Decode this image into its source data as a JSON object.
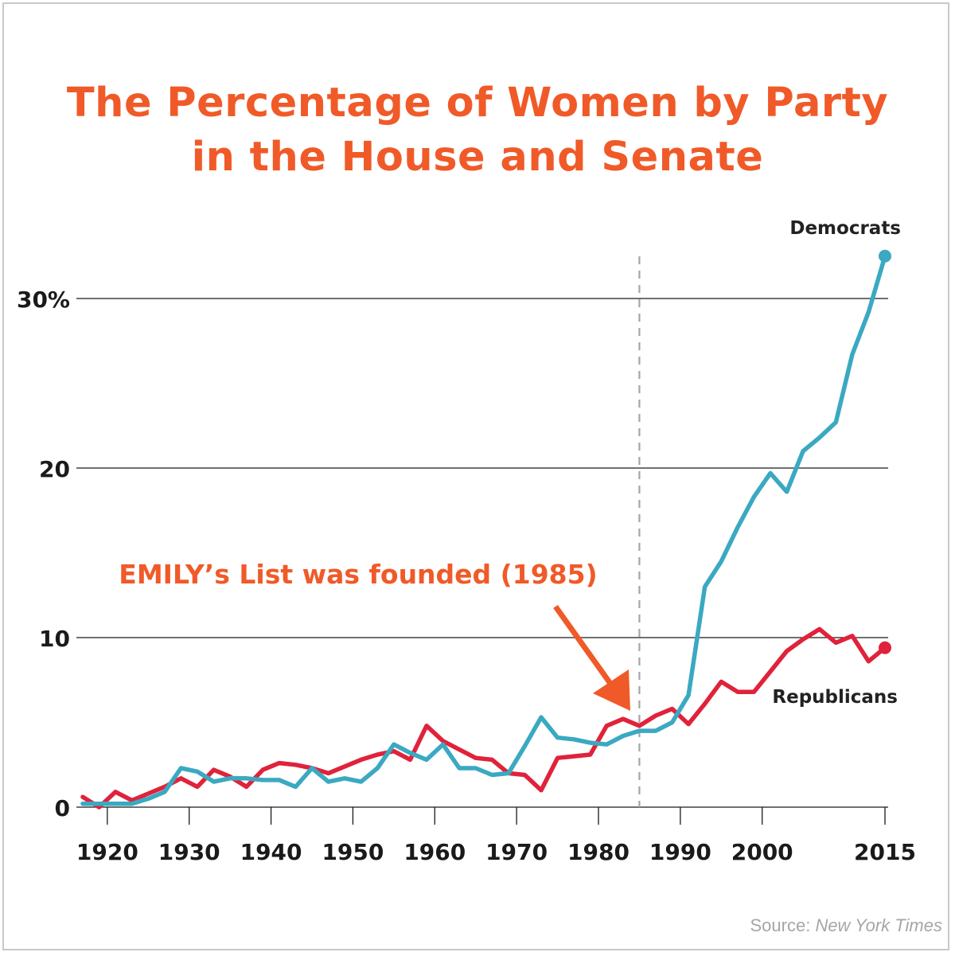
{
  "chart_data": {
    "type": "line",
    "title": [
      "The Percentage of Women by Party",
      "in the House and Senate"
    ],
    "xlim": [
      1917,
      2015
    ],
    "ylim": [
      0,
      32.5
    ],
    "y_ticks": [
      {
        "value": 0,
        "label": "0"
      },
      {
        "value": 10,
        "label": "10"
      },
      {
        "value": 20,
        "label": "20"
      },
      {
        "value": 30,
        "label": "30%"
      }
    ],
    "x_ticks": [
      {
        "value": 1920,
        "label": "1920"
      },
      {
        "value": 1930,
        "label": "1930"
      },
      {
        "value": 1940,
        "label": "1940"
      },
      {
        "value": 1950,
        "label": "1950"
      },
      {
        "value": 1960,
        "label": "1960"
      },
      {
        "value": 1970,
        "label": "1970"
      },
      {
        "value": 1980,
        "label": "1980"
      },
      {
        "value": 1990,
        "label": "1990"
      },
      {
        "value": 2000,
        "label": "2000"
      },
      {
        "value": 2015,
        "label": "2015"
      }
    ],
    "grid": "horizontal",
    "series": [
      {
        "name": "Democrats",
        "color": "#3aa9c1",
        "points": [
          [
            1917,
            0.2
          ],
          [
            1919,
            0.2
          ],
          [
            1921,
            0.2
          ],
          [
            1923,
            0.2
          ],
          [
            1925,
            0.5
          ],
          [
            1927,
            0.9
          ],
          [
            1929,
            2.3
          ],
          [
            1931,
            2.1
          ],
          [
            1933,
            1.5
          ],
          [
            1935,
            1.7
          ],
          [
            1937,
            1.7
          ],
          [
            1939,
            1.6
          ],
          [
            1941,
            1.6
          ],
          [
            1943,
            1.2
          ],
          [
            1945,
            2.3
          ],
          [
            1947,
            1.5
          ],
          [
            1949,
            1.7
          ],
          [
            1951,
            1.5
          ],
          [
            1953,
            2.3
          ],
          [
            1955,
            3.7
          ],
          [
            1957,
            3.2
          ],
          [
            1959,
            2.8
          ],
          [
            1961,
            3.7
          ],
          [
            1963,
            2.3
          ],
          [
            1965,
            2.3
          ],
          [
            1967,
            1.9
          ],
          [
            1969,
            2.0
          ],
          [
            1971,
            3.6
          ],
          [
            1973,
            5.3
          ],
          [
            1975,
            4.1
          ],
          [
            1977,
            4.0
          ],
          [
            1979,
            3.8
          ],
          [
            1981,
            3.7
          ],
          [
            1983,
            4.2
          ],
          [
            1985,
            4.5
          ],
          [
            1987,
            4.5
          ],
          [
            1989,
            5.0
          ],
          [
            1991,
            6.6
          ],
          [
            1993,
            13.0
          ],
          [
            1995,
            14.5
          ],
          [
            1997,
            16.5
          ],
          [
            1999,
            18.3
          ],
          [
            2001,
            19.7
          ],
          [
            2003,
            18.6
          ],
          [
            2005,
            21.0
          ],
          [
            2007,
            21.8
          ],
          [
            2009,
            22.7
          ],
          [
            2011,
            26.7
          ],
          [
            2013,
            29.2
          ],
          [
            2015,
            32.5
          ]
        ]
      },
      {
        "name": "Republicans",
        "color": "#e0223b",
        "points": [
          [
            1917,
            0.6
          ],
          [
            1919,
            0.0
          ],
          [
            1921,
            0.9
          ],
          [
            1923,
            0.4
          ],
          [
            1925,
            0.8
          ],
          [
            1927,
            1.2
          ],
          [
            1929,
            1.7
          ],
          [
            1931,
            1.2
          ],
          [
            1933,
            2.2
          ],
          [
            1935,
            1.8
          ],
          [
            1937,
            1.2
          ],
          [
            1939,
            2.2
          ],
          [
            1941,
            2.6
          ],
          [
            1943,
            2.5
          ],
          [
            1945,
            2.3
          ],
          [
            1947,
            2.0
          ],
          [
            1949,
            2.4
          ],
          [
            1951,
            2.8
          ],
          [
            1953,
            3.1
          ],
          [
            1955,
            3.3
          ],
          [
            1957,
            2.8
          ],
          [
            1959,
            4.8
          ],
          [
            1961,
            3.9
          ],
          [
            1963,
            3.4
          ],
          [
            1965,
            2.9
          ],
          [
            1967,
            2.8
          ],
          [
            1969,
            2.0
          ],
          [
            1971,
            1.9
          ],
          [
            1973,
            1.0
          ],
          [
            1975,
            2.9
          ],
          [
            1977,
            3.0
          ],
          [
            1979,
            3.1
          ],
          [
            1981,
            4.8
          ],
          [
            1983,
            5.2
          ],
          [
            1985,
            4.8
          ],
          [
            1987,
            5.4
          ],
          [
            1989,
            5.8
          ],
          [
            1991,
            4.9
          ],
          [
            1993,
            6.1
          ],
          [
            1995,
            7.4
          ],
          [
            1997,
            6.8
          ],
          [
            1999,
            6.8
          ],
          [
            2001,
            8.0
          ],
          [
            2003,
            9.2
          ],
          [
            2005,
            9.9
          ],
          [
            2007,
            10.5
          ],
          [
            2009,
            9.7
          ],
          [
            2011,
            10.1
          ],
          [
            2013,
            8.6
          ],
          [
            2015,
            9.4
          ]
        ]
      }
    ],
    "annotation": {
      "text": "EMILY’s List was founded (1985)",
      "x": 1985,
      "color": "#f05a28"
    },
    "source": {
      "prefix": "Source: ",
      "publication": "New York Times"
    }
  }
}
